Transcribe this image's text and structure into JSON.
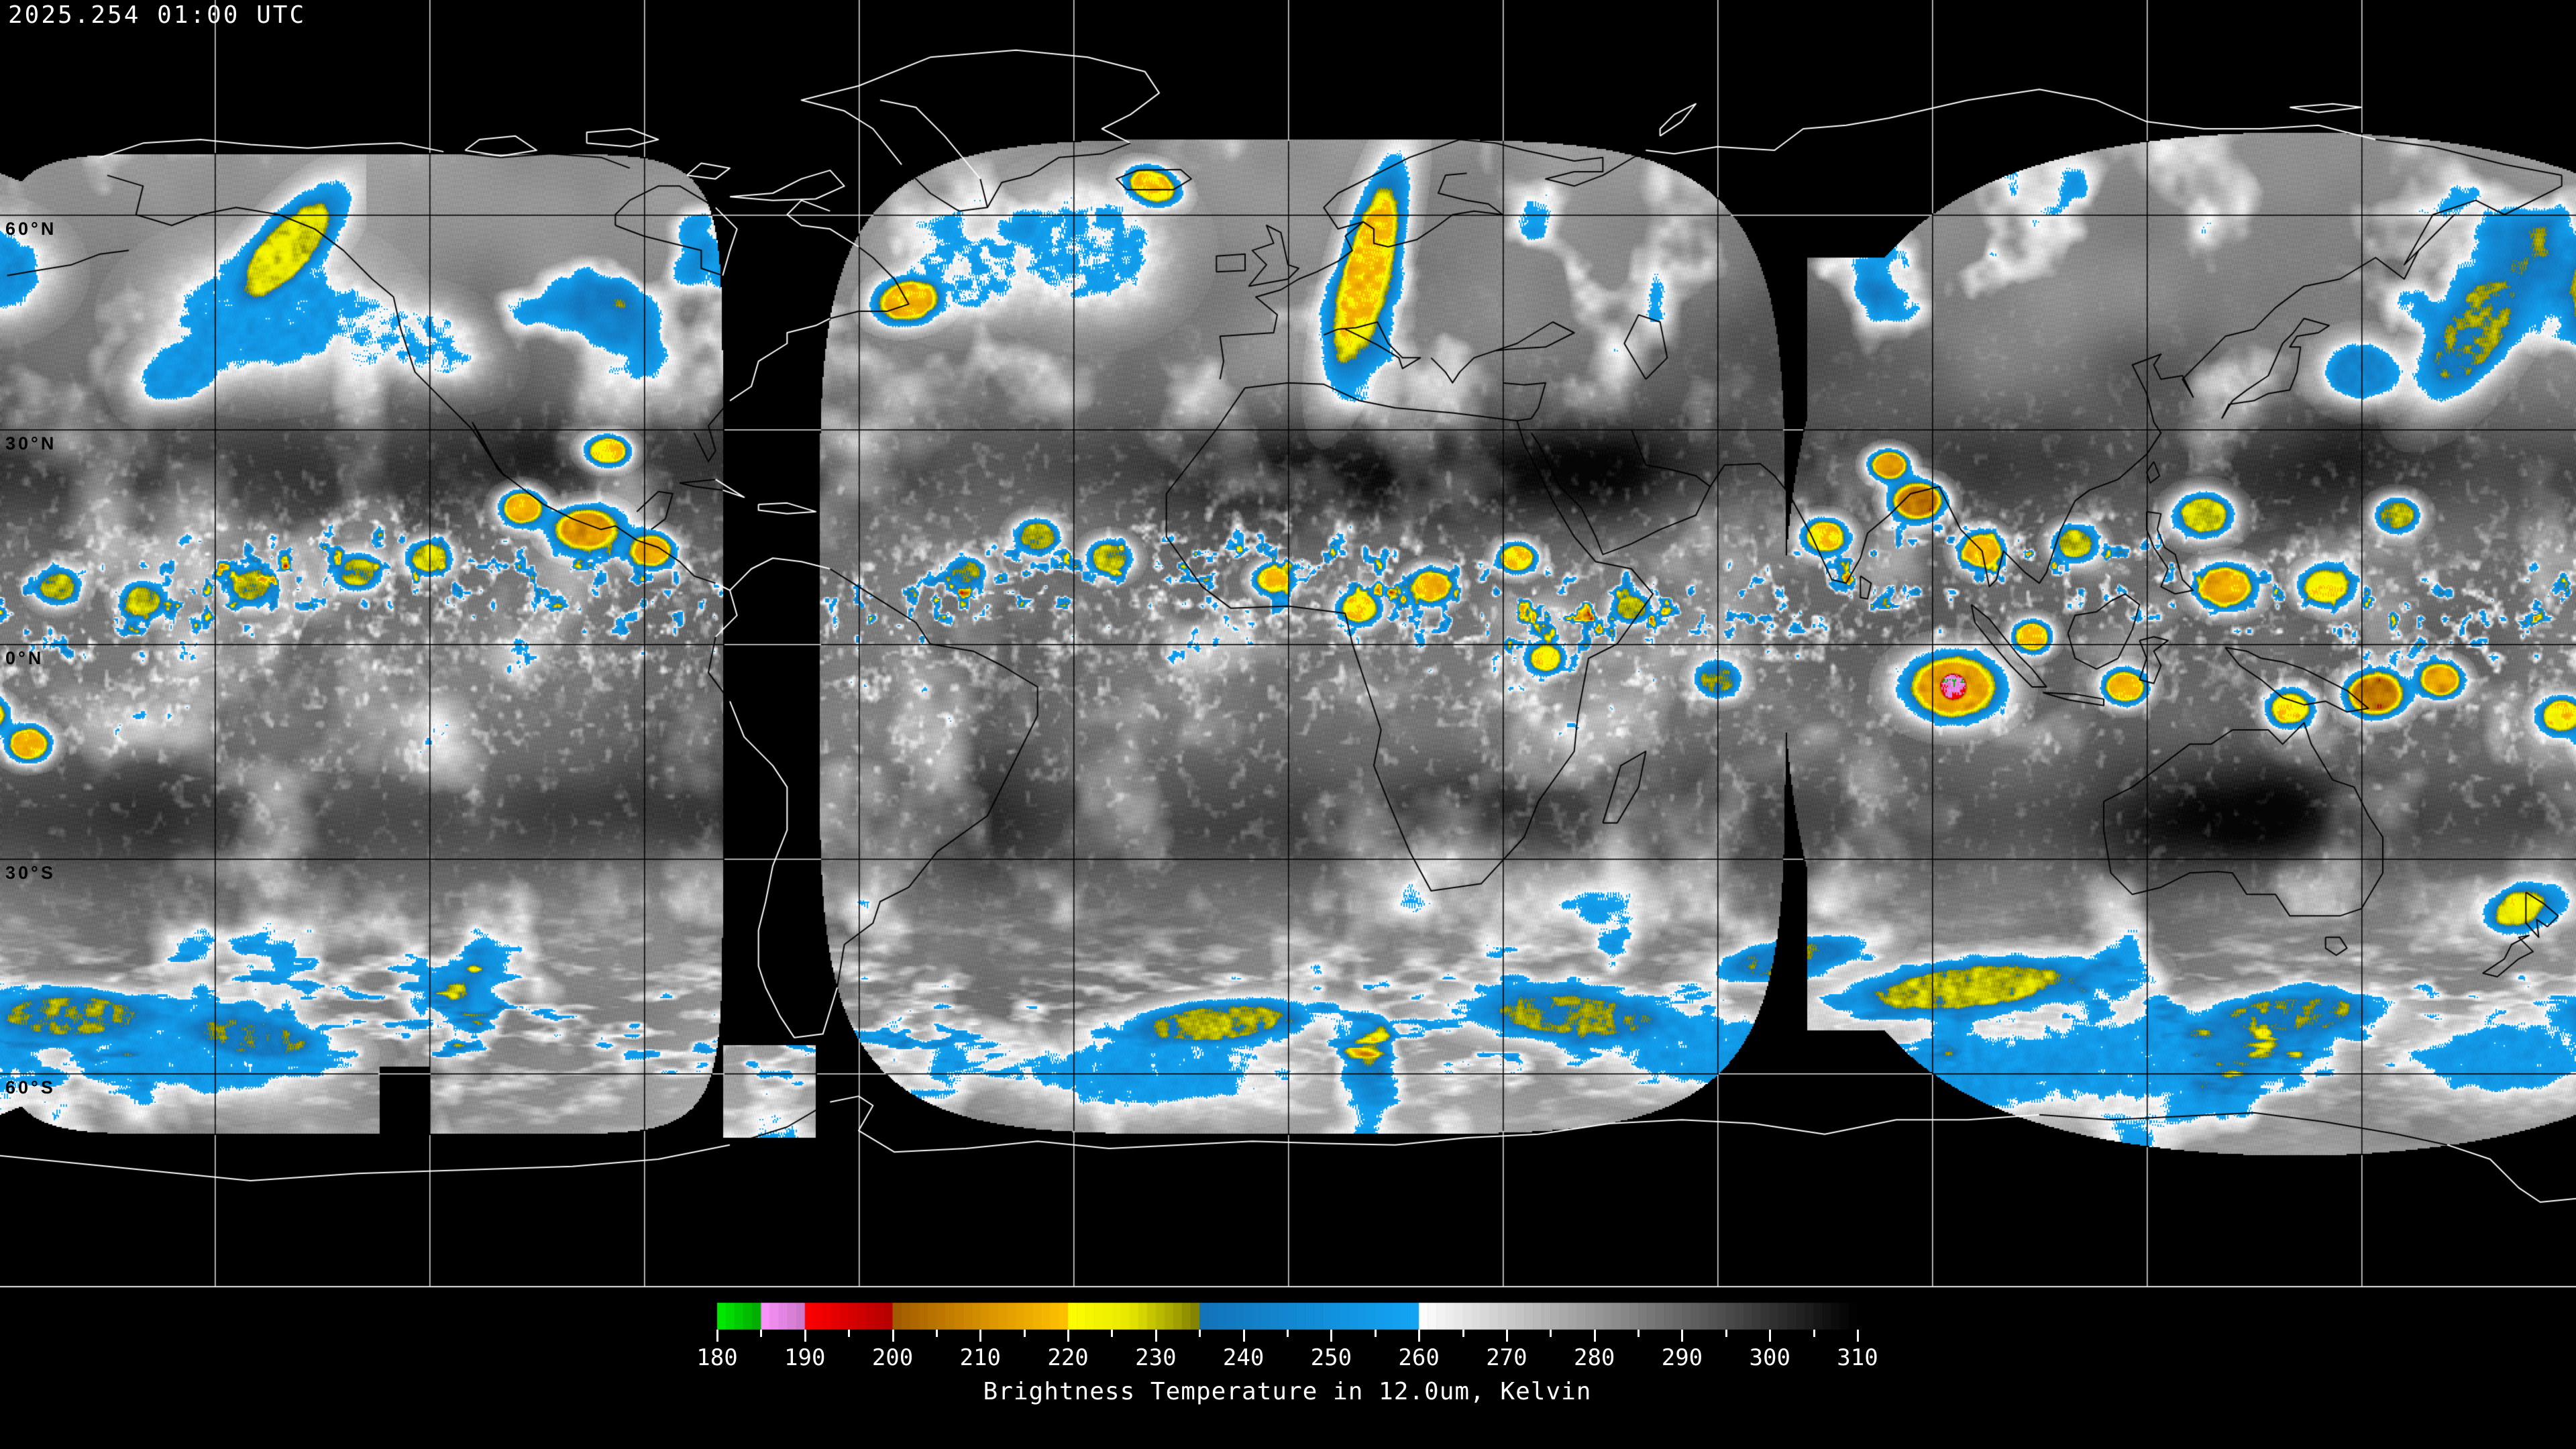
{
  "header": {
    "timestamp": "2025.254 01:00 UTC"
  },
  "map": {
    "projection": "equirectangular",
    "grid_spacing_deg": 30,
    "background_color": "#000000",
    "gridline_color_over_void": "#dcdcdc",
    "gridline_color_over_data": "#000000",
    "coastline_color_over_void": "#ffffff",
    "coastline_color_over_data": "#000000",
    "map_border_color": "#e8e8e8",
    "latitude_labels": [
      {
        "text": "60°N",
        "lat": 60
      },
      {
        "text": "30°N",
        "lat": 30
      },
      {
        "text": "0°N",
        "lat": 0
      },
      {
        "text": "30°S",
        "lat": -30
      },
      {
        "text": "60°S",
        "lat": -60
      }
    ]
  },
  "colorbar": {
    "title": "Brightness Temperature in 12.0um, Kelvin",
    "units": "Kelvin",
    "min": 180,
    "max": 310,
    "major_tick_step": 10,
    "minor_tick_step": 5,
    "tick_color": "#ffffff",
    "label_color": "#ffffff",
    "tick_labels": [
      "180",
      "190",
      "200",
      "210",
      "220",
      "230",
      "240",
      "250",
      "260",
      "270",
      "280",
      "290",
      "300",
      "310"
    ],
    "palette_stops": [
      {
        "t": 180,
        "c": "#00f000"
      },
      {
        "t": 184.99,
        "c": "#00a800"
      },
      {
        "t": 185,
        "c": "#ff96ff"
      },
      {
        "t": 189.99,
        "c": "#c878c8"
      },
      {
        "t": 190,
        "c": "#ff0000"
      },
      {
        "t": 199.99,
        "c": "#b40000"
      },
      {
        "t": 200,
        "c": "#a05a00"
      },
      {
        "t": 212,
        "c": "#e09a00"
      },
      {
        "t": 219.99,
        "c": "#ffc300"
      },
      {
        "t": 220,
        "c": "#ffff00"
      },
      {
        "t": 227,
        "c": "#e8e800"
      },
      {
        "t": 234.99,
        "c": "#7e7e00"
      },
      {
        "t": 235,
        "c": "#1473b9"
      },
      {
        "t": 259.99,
        "c": "#12a5f5"
      },
      {
        "t": 260,
        "c": "#ffffff"
      },
      {
        "t": 310,
        "c": "#000000"
      }
    ]
  }
}
